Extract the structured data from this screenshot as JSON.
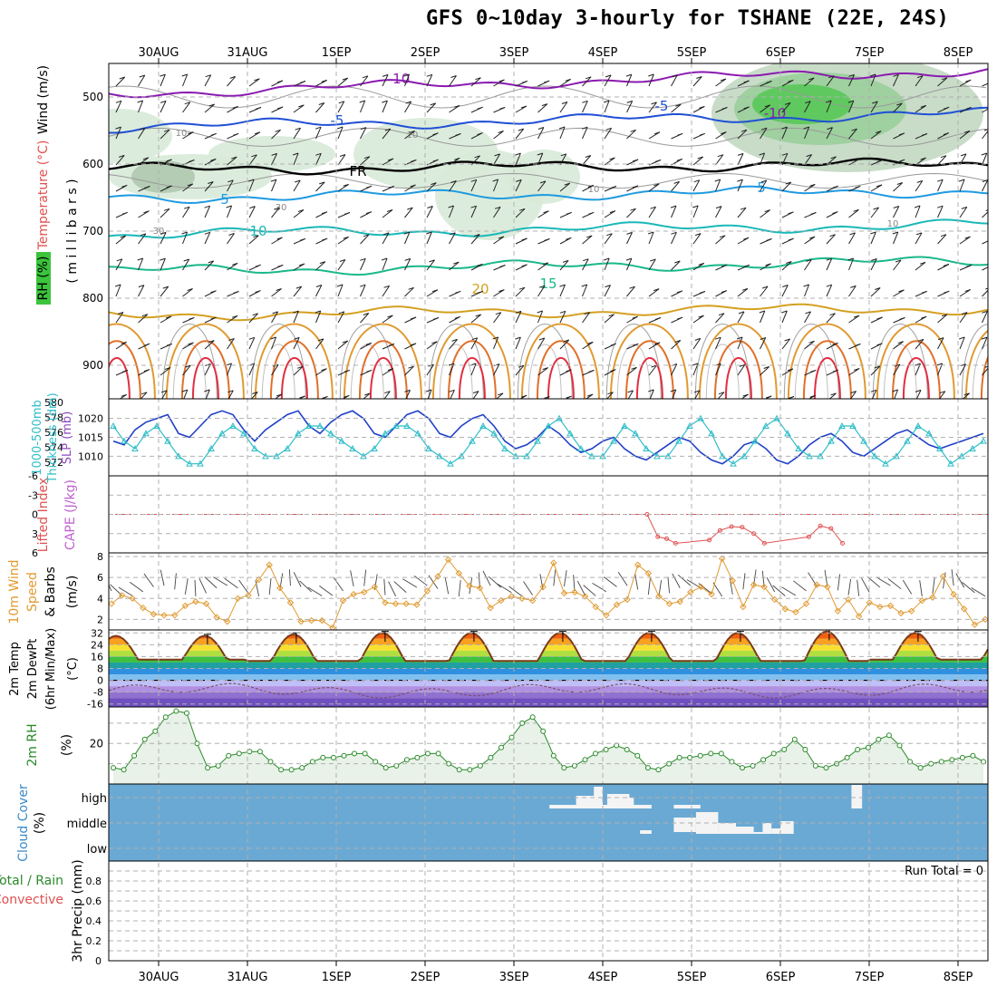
{
  "title": "GFS 0~10day 3-hourly for TSHANE (22E, 24S)",
  "dates": [
    "30AUG",
    "31AUG",
    "1SEP",
    "2SEP",
    "3SEP",
    "4SEP",
    "5SEP",
    "6SEP",
    "7SEP",
    "8SEP"
  ],
  "colors": {
    "grid": "#b0b0b0",
    "rh_fill": "#d8ead8",
    "temp_line": "#707070",
    "cloud": "#6aa9d4",
    "cape": "#e05050",
    "wind": "#e09a30",
    "thick": "#2dbdc8",
    "slp": "#2040c8"
  },
  "chart_data": [
    {
      "type": "contour",
      "name": "upper_air",
      "ylabel_parts": [
        "RH (%)",
        "Temperature (°C)",
        "Wind (m/s)"
      ],
      "yaxis": "( m i l l i b a r s )",
      "yticks": [
        500,
        600,
        700,
        800,
        900
      ],
      "ylim": [
        450,
        950
      ],
      "isotherms": [
        {
          "label": "-10",
          "color": "#8a1ab0",
          "pressure_start": 495,
          "pressure_end": 460
        },
        {
          "label": "-5",
          "color": "#1f4fd6",
          "pressure_start": 545,
          "pressure_end": 525
        },
        {
          "label": "FR",
          "color": "#000000",
          "pressure_start": 608,
          "pressure_end": 600
        },
        {
          "label": "5",
          "color": "#1e9ae0",
          "pressure_start": 650,
          "pressure_end": 640
        },
        {
          "label": "10",
          "color": "#1ab8b8",
          "pressure_start": 705,
          "pressure_end": 690
        },
        {
          "label": "15",
          "color": "#1ab88a",
          "pressure_start": 760,
          "pressure_end": 745
        },
        {
          "label": "20",
          "color": "#d4a020",
          "pressure_start": 825,
          "pressure_end": 815
        }
      ],
      "rh_labels": [
        "10",
        "10",
        "30",
        "30",
        "10",
        "10"
      ]
    },
    {
      "type": "line",
      "name": "thickness_slp",
      "ylabel_parts": [
        "1000-500mb",
        "Thickness (dm)",
        "SLP (mb)"
      ],
      "left_ticks": [
        580,
        578,
        576,
        574,
        572
      ],
      "right_ticks": [
        1020,
        1015,
        1010
      ],
      "series": [
        {
          "name": "SLP (mb)",
          "color": "#2040c8",
          "ylim": [
            1006,
            1024
          ],
          "values": [
            1014,
            1013,
            1017,
            1019,
            1020,
            1021,
            1016,
            1015,
            1018,
            1021,
            1022,
            1021,
            1017,
            1014,
            1017,
            1019,
            1021,
            1022,
            1018,
            1016,
            1019,
            1021,
            1022,
            1020,
            1016,
            1015,
            1018,
            1021,
            1022,
            1020,
            1016,
            1015,
            1018,
            1020,
            1021,
            1018,
            1014,
            1012,
            1013,
            1015,
            1018,
            1016,
            1013,
            1011,
            1012,
            1014,
            1015,
            1012,
            1010,
            1009,
            1011,
            1013,
            1015,
            1014,
            1011,
            1009,
            1008,
            1010,
            1013,
            1014,
            1012,
            1009,
            1008,
            1010,
            1013,
            1015,
            1016,
            1014,
            1011,
            1010,
            1012,
            1014,
            1016,
            1017,
            1015,
            1013,
            1012,
            1013,
            1014,
            1015,
            1016
          ]
        },
        {
          "name": "Thickness (dm)",
          "color": "#2dbdc8",
          "ylim": [
            571,
            580
          ],
          "values": [
            577,
            575,
            574,
            576,
            577,
            575,
            573,
            572,
            572,
            574,
            576,
            577,
            576,
            574,
            573,
            573,
            574,
            576,
            577,
            577,
            576,
            575,
            574,
            573,
            574,
            576,
            577,
            577,
            576,
            574,
            573,
            572,
            573,
            575,
            577,
            576,
            574,
            573,
            573,
            575,
            577,
            578,
            576,
            574,
            573,
            573,
            575,
            577,
            576,
            574,
            573,
            573,
            575,
            577,
            578,
            576,
            573,
            572,
            573,
            575,
            577,
            578,
            576,
            574,
            573,
            573,
            575,
            577,
            577,
            575,
            573,
            572,
            573,
            575,
            577,
            576,
            574,
            572,
            573,
            574,
            575
          ]
        }
      ]
    },
    {
      "type": "line",
      "name": "lifted_index_cape",
      "ylabel_parts": [
        "Lifted Index",
        "CAPE (J/kg)"
      ],
      "yticks": [
        -6,
        -3,
        0,
        3,
        6
      ],
      "ylim": [
        6,
        -6
      ],
      "series": [
        {
          "name": "Lifted Index",
          "color": "#e05050",
          "points": [
            [
              5.5,
              0
            ],
            [
              5.62,
              3.5
            ],
            [
              5.72,
              3.8
            ],
            [
              5.82,
              4.5
            ],
            [
              6.2,
              4
            ],
            [
              6.32,
              2.5
            ],
            [
              6.45,
              1.9
            ],
            [
              6.57,
              2
            ],
            [
              6.7,
              3
            ],
            [
              6.82,
              4.5
            ],
            [
              7.32,
              3.5
            ],
            [
              7.45,
              1.8
            ],
            [
              7.57,
              2.2
            ],
            [
              7.7,
              4.5
            ]
          ]
        }
      ]
    },
    {
      "type": "line",
      "name": "wind_10m",
      "ylabel_parts": [
        "10m Wind",
        "Speed",
        "& Barbs",
        "(m/s)"
      ],
      "yticks": [
        2,
        4,
        6,
        8
      ],
      "ylim": [
        1,
        8
      ],
      "series": [
        {
          "name": "Speed (m/s)",
          "color": "#e09a30",
          "values": [
            3.5,
            4.3,
            4.0,
            3.1,
            2.5,
            2.4,
            2.4,
            3.3,
            3.7,
            3.5,
            2.2,
            1.8,
            4.0,
            4.3,
            5.8,
            7.2,
            5.0,
            3.6,
            1.8,
            1.9,
            1.9,
            1.2,
            3.8,
            4.4,
            4.6,
            5.1,
            3.6,
            3.5,
            3.5,
            3.4,
            4.7,
            6.1,
            7.7,
            6.4,
            5.2,
            5.0,
            3.1,
            3.8,
            4.2,
            4.0,
            3.8,
            5.1,
            7.4,
            4.5,
            4.6,
            4.2,
            3.2,
            2.4,
            3.4,
            3.9,
            7.2,
            6.4,
            4.2,
            3.5,
            3.7,
            4.6,
            5.1,
            4.4,
            7.8,
            5.7,
            3.2,
            5.3,
            5.1,
            3.9,
            3.0,
            2.7,
            3.5,
            5.3,
            5.1,
            2.8,
            3.9,
            2.3,
            3.6,
            3.2,
            3.3,
            2.6,
            2.8,
            3.8,
            4.1,
            6.1,
            4.4,
            3.0,
            1.5,
            2.0
          ]
        }
      ]
    },
    {
      "type": "area",
      "name": "temp_2m",
      "ylabel_parts": [
        "2m Temp",
        "2m DewPt",
        "(6hr Min/Max)",
        "(°C)"
      ],
      "yticks": [
        32,
        24,
        16,
        8,
        0,
        -8,
        -16
      ],
      "ylim": [
        -18,
        34
      ],
      "series": [
        {
          "name": "2m Temp",
          "color": "#7a3a1a",
          "daily_min": [
            14,
            13,
            13,
            13,
            13,
            13,
            13,
            13,
            14,
            14
          ],
          "daily_max": [
            30,
            31,
            32,
            32,
            32,
            32,
            32,
            33,
            32,
            31
          ]
        },
        {
          "name": "2m DewPt",
          "color": "#7a5070",
          "range": [
            -16,
            0
          ]
        }
      ]
    },
    {
      "type": "area",
      "name": "rh_2m",
      "ylabel_parts": [
        "2m RH",
        "(%)"
      ],
      "yticks": [
        20
      ],
      "ylim": [
        0,
        38
      ],
      "series": [
        {
          "name": "2m RH",
          "color": "#2a8a2a",
          "values": [
            8,
            7,
            14,
            22,
            26,
            33,
            36,
            35,
            20,
            8,
            9,
            14,
            15,
            16,
            16,
            11,
            7,
            7,
            8,
            11,
            13,
            13,
            14,
            15,
            15,
            11,
            8,
            9,
            12,
            13,
            15,
            15,
            10,
            7,
            7,
            9,
            13,
            18,
            23,
            30,
            33,
            26,
            14,
            8,
            9,
            12,
            15,
            17,
            19,
            17,
            14,
            8,
            7,
            10,
            13,
            13,
            14,
            15,
            15,
            11,
            8,
            9,
            12,
            15,
            17,
            22,
            17,
            9,
            8,
            10,
            13,
            17,
            18,
            22,
            24,
            19,
            11,
            8,
            10,
            11,
            12,
            13,
            14,
            11
          ]
        }
      ]
    },
    {
      "type": "heatmap",
      "name": "cloud_cover",
      "ylabel_parts": [
        "Cloud Cover",
        "(%)"
      ],
      "levels": [
        "high",
        "middle",
        "low"
      ]
    },
    {
      "type": "bar",
      "name": "precip",
      "ylabel_parts": [
        "3hr Precip (mm)"
      ],
      "legend": [
        "Total / Rain",
        "Convective"
      ],
      "yticks": [
        0,
        0.2,
        0.4,
        0.6,
        0.8
      ],
      "ylim": [
        0,
        1
      ],
      "annotation": "Run Total = 0"
    }
  ]
}
